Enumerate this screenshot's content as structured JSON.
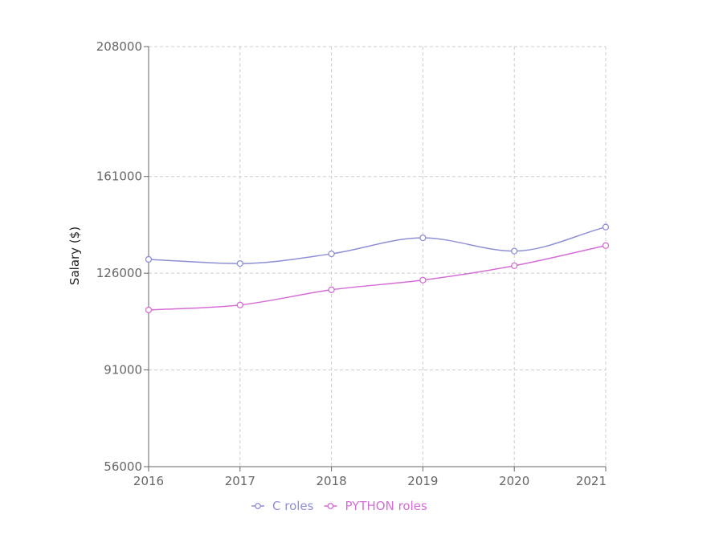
{
  "chart_data": {
    "type": "line",
    "title": "",
    "xlabel": "",
    "ylabel": "Salary ($)",
    "x": [
      2016,
      2017,
      2018,
      2019,
      2020,
      2021
    ],
    "x_tick_labels": [
      "2016",
      "2017",
      "2018",
      "2019",
      "2020",
      "2021"
    ],
    "ylim": [
      56000,
      208000
    ],
    "y_ticks": [
      56000,
      91000,
      126000,
      161000,
      208000
    ],
    "y_tick_labels": [
      "56000",
      "91000",
      "126000",
      "161000",
      "208000"
    ],
    "grid": true,
    "legend_position": "bottom-center",
    "series": [
      {
        "name": "C roles",
        "color": "#8f8fd6",
        "values": [
          131000,
          129500,
          133000,
          138800,
          134000,
          142700
        ]
      },
      {
        "name": "PYTHON roles",
        "color": "#d46dd6",
        "values": [
          112700,
          114500,
          120000,
          123500,
          128700,
          136000
        ]
      }
    ]
  }
}
